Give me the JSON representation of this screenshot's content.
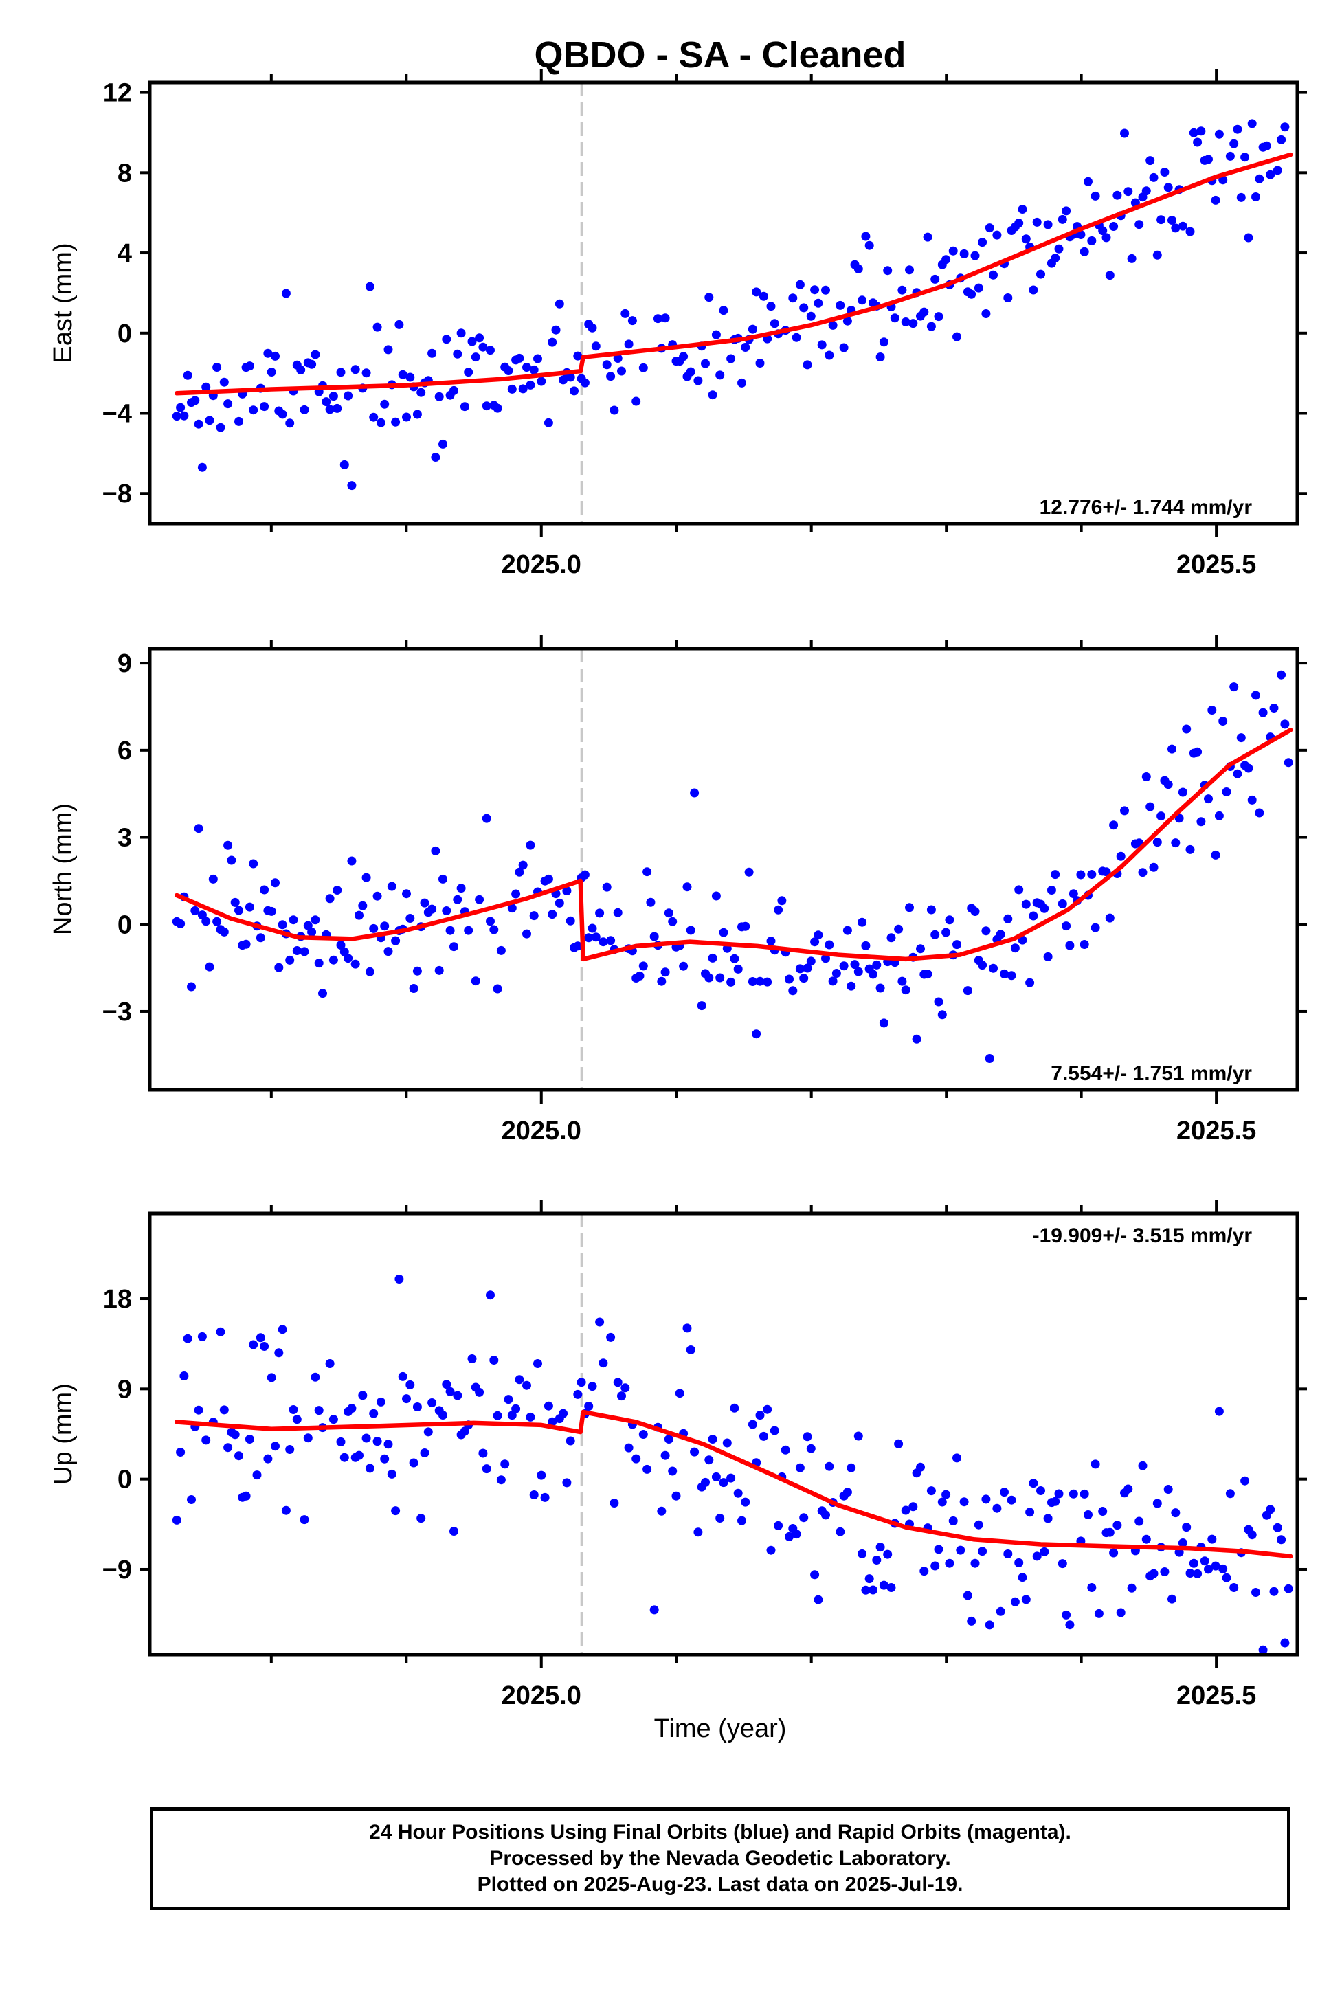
{
  "title": "QBDO  - SA - Cleaned",
  "x_axis_label": "Time (year)",
  "caption": [
    "24 Hour Positions Using Final Orbits (blue) and Rapid Orbits (magenta).",
    "Processed by the Nevada Geodetic Laboratory.",
    "Plotted on 2025-Aug-23. Last data on 2025-Jul-19."
  ],
  "colors": {
    "points": "#0000ff",
    "model": "#ff0000",
    "offset_line": "#c8c8c8",
    "frame": "#000000"
  },
  "chart_data": [
    {
      "type": "scatter",
      "title": "QBDO  - SA - Cleaned",
      "ylabel": "East (mm)",
      "xlabel": "",
      "xlim": [
        2024.71,
        2025.56
      ],
      "ylim": [
        -9.5,
        12.5
      ],
      "yticks": [
        12,
        8,
        4,
        0,
        -4,
        -8
      ],
      "ytick_labels": [
        "12",
        "8",
        "4",
        "0",
        "−4",
        "−8"
      ],
      "xticks": [
        2025.0,
        2025.5
      ],
      "xtick_labels": [
        "2025.0",
        "2025.5"
      ],
      "minor_xticks": [
        2024.8,
        2024.9,
        2025.1,
        2025.2,
        2025.3,
        2025.4
      ],
      "offset_epoch": 2025.03,
      "rate_text": "12.776+/- 1.744 mm/yr",
      "rate_position": "bottom-right",
      "grid": false,
      "series": [
        {
          "kind": "points",
          "seed": 11,
          "step": 0.0027,
          "x_start": 2024.73,
          "x_end": 2025.555,
          "noise": 1.3,
          "outlier_every": 23,
          "outlier_scale": 3.2,
          "trend": [
            [
              2024.73,
              -3.0
            ],
            [
              2024.9,
              -2.6
            ],
            [
              2025.02,
              -2.0
            ],
            [
              2025.035,
              -1.2
            ],
            [
              2025.15,
              -0.3
            ],
            [
              2025.25,
              1.2
            ],
            [
              2025.35,
              3.8
            ],
            [
              2025.45,
              6.4
            ],
            [
              2025.555,
              8.9
            ]
          ]
        },
        {
          "kind": "line",
          "points": [
            [
              2024.73,
              -3.0
            ],
            [
              2024.8,
              -2.8
            ],
            [
              2024.9,
              -2.6
            ],
            [
              2024.97,
              -2.3
            ],
            [
              2025.029,
              -1.9
            ],
            [
              2025.031,
              -1.2
            ],
            [
              2025.1,
              -0.7
            ],
            [
              2025.15,
              -0.3
            ],
            [
              2025.2,
              0.4
            ],
            [
              2025.25,
              1.3
            ],
            [
              2025.3,
              2.4
            ],
            [
              2025.35,
              3.8
            ],
            [
              2025.4,
              5.2
            ],
            [
              2025.45,
              6.5
            ],
            [
              2025.5,
              7.8
            ],
            [
              2025.555,
              8.9
            ]
          ]
        }
      ]
    },
    {
      "type": "scatter",
      "ylabel": "North (mm)",
      "xlabel": "",
      "xlim": [
        2024.71,
        2025.56
      ],
      "ylim": [
        -5.7,
        9.5
      ],
      "yticks": [
        9,
        6,
        3,
        0,
        -3
      ],
      "ytick_labels": [
        "9",
        "6",
        "3",
        "0",
        "−3"
      ],
      "xticks": [
        2025.0,
        2025.5
      ],
      "xtick_labels": [
        "2025.0",
        "2025.5"
      ],
      "minor_xticks": [
        2024.8,
        2024.9,
        2025.1,
        2025.2,
        2025.3,
        2025.4
      ],
      "offset_epoch": 2025.03,
      "rate_text": "7.554+/- 1.751 mm/yr",
      "rate_position": "bottom-right",
      "grid": false,
      "series": [
        {
          "kind": "points",
          "seed": 29,
          "step": 0.0027,
          "x_start": 2024.73,
          "x_end": 2025.555,
          "noise": 1.2,
          "outlier_every": 27,
          "outlier_scale": 2.8,
          "trend": [
            [
              2024.73,
              1.0
            ],
            [
              2024.82,
              -0.4
            ],
            [
              2024.9,
              -0.3
            ],
            [
              2025.02,
              1.4
            ],
            [
              2025.035,
              -1.2
            ],
            [
              2025.1,
              -0.7
            ],
            [
              2025.2,
              -1.0
            ],
            [
              2025.3,
              -1.2
            ],
            [
              2025.4,
              1.0
            ],
            [
              2025.5,
              5.1
            ],
            [
              2025.555,
              6.7
            ]
          ]
        },
        {
          "kind": "line",
          "points": [
            [
              2024.73,
              1.0
            ],
            [
              2024.77,
              0.2
            ],
            [
              2024.82,
              -0.45
            ],
            [
              2024.86,
              -0.5
            ],
            [
              2024.9,
              -0.2
            ],
            [
              2024.95,
              0.4
            ],
            [
              2024.99,
              0.9
            ],
            [
              2025.029,
              1.5
            ],
            [
              2025.031,
              -1.2
            ],
            [
              2025.07,
              -0.75
            ],
            [
              2025.11,
              -0.6
            ],
            [
              2025.16,
              -0.75
            ],
            [
              2025.22,
              -1.05
            ],
            [
              2025.27,
              -1.2
            ],
            [
              2025.31,
              -1.05
            ],
            [
              2025.35,
              -0.5
            ],
            [
              2025.39,
              0.5
            ],
            [
              2025.43,
              2.0
            ],
            [
              2025.47,
              3.8
            ],
            [
              2025.51,
              5.5
            ],
            [
              2025.555,
              6.7
            ]
          ]
        }
      ]
    },
    {
      "type": "scatter",
      "ylabel": "Up (mm)",
      "xlabel": "Time (year)",
      "xlim": [
        2024.71,
        2025.56
      ],
      "ylim": [
        -17.5,
        26.5
      ],
      "yticks": [
        18,
        9,
        0,
        -9
      ],
      "ytick_labels": [
        "18",
        "9",
        "0",
        "−9"
      ],
      "xticks": [
        2025.0,
        2025.5
      ],
      "xtick_labels": [
        "2025.0",
        "2025.5"
      ],
      "minor_xticks": [
        2024.8,
        2024.9,
        2025.1,
        2025.2,
        2025.3,
        2025.4
      ],
      "offset_epoch": 2025.03,
      "rate_text": "-19.909+/- 3.515 mm/yr",
      "rate_position": "top-right",
      "grid": false,
      "series": [
        {
          "kind": "points",
          "seed": 47,
          "step": 0.0027,
          "x_start": 2024.73,
          "x_end": 2025.555,
          "noise": 4.6,
          "outlier_every": 31,
          "outlier_scale": 2.4,
          "trend": [
            [
              2024.73,
              5.7
            ],
            [
              2024.9,
              5.3
            ],
            [
              2025.02,
              5.0
            ],
            [
              2025.035,
              6.7
            ],
            [
              2025.1,
              3.7
            ],
            [
              2025.2,
              -2.5
            ],
            [
              2025.3,
              -5.8
            ],
            [
              2025.4,
              -6.5
            ],
            [
              2025.5,
              -7.0
            ],
            [
              2025.555,
              -7.5
            ]
          ]
        },
        {
          "kind": "line",
          "points": [
            [
              2024.73,
              5.7
            ],
            [
              2024.8,
              5.0
            ],
            [
              2024.88,
              5.3
            ],
            [
              2024.95,
              5.6
            ],
            [
              2025.0,
              5.4
            ],
            [
              2025.029,
              4.7
            ],
            [
              2025.031,
              6.7
            ],
            [
              2025.07,
              5.7
            ],
            [
              2025.12,
              3.5
            ],
            [
              2025.17,
              0.5
            ],
            [
              2025.22,
              -2.6
            ],
            [
              2025.27,
              -4.8
            ],
            [
              2025.32,
              -6.0
            ],
            [
              2025.37,
              -6.5
            ],
            [
              2025.42,
              -6.7
            ],
            [
              2025.48,
              -6.9
            ],
            [
              2025.52,
              -7.2
            ],
            [
              2025.555,
              -7.7
            ]
          ]
        }
      ]
    }
  ]
}
